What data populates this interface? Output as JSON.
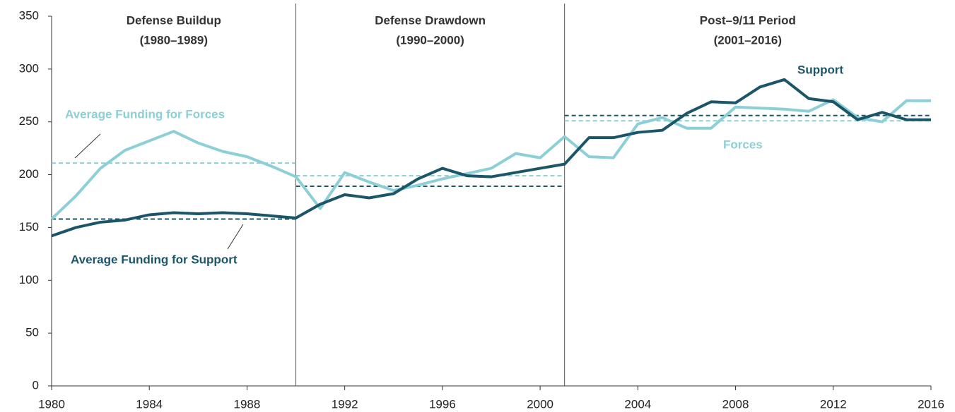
{
  "chart_data": {
    "type": "line",
    "x": [
      1980,
      1981,
      1982,
      1983,
      1984,
      1985,
      1986,
      1987,
      1988,
      1989,
      1990,
      1991,
      1992,
      1993,
      1994,
      1995,
      1996,
      1997,
      1998,
      1999,
      2000,
      2001,
      2002,
      2003,
      2004,
      2005,
      2006,
      2007,
      2008,
      2009,
      2010,
      2011,
      2012,
      2013,
      2014,
      2015,
      2016
    ],
    "series": [
      {
        "name": "Forces",
        "color": "#8ccfd6",
        "values": [
          158,
          180,
          206,
          223,
          232,
          241,
          230,
          222,
          217,
          208,
          198,
          168,
          202,
          193,
          185,
          190,
          196,
          201,
          206,
          220,
          216,
          236,
          217,
          216,
          248,
          254,
          244,
          244,
          264,
          263,
          262,
          260,
          271,
          254,
          250,
          270,
          270
        ]
      },
      {
        "name": "Support",
        "color": "#1b5568",
        "values": [
          142,
          150,
          155,
          157,
          162,
          164,
          163,
          164,
          163,
          161,
          159,
          172,
          181,
          178,
          182,
          196,
          206,
          199,
          198,
          202,
          206,
          210,
          235,
          235,
          240,
          242,
          258,
          269,
          268,
          283,
          290,
          272,
          269,
          252,
          259,
          252,
          252
        ]
      }
    ],
    "averages": [
      {
        "x": [
          1980,
          1990
        ],
        "forces": 211,
        "support": 158
      },
      {
        "x": [
          1990,
          2001
        ],
        "forces": 199,
        "support": 189
      },
      {
        "x": [
          2001,
          2016
        ],
        "forces": 251,
        "support": 256
      }
    ],
    "dividers": [
      1990,
      2001
    ],
    "periods": [
      {
        "name": "Defense Buildup",
        "range": "(1980–1989)"
      },
      {
        "name": "Defense Drawdown",
        "range": "(1990–2000)"
      },
      {
        "name": "Post–9/11 Period",
        "range": "(2001–2016)"
      }
    ],
    "annotations": {
      "forces_average": "Average Funding for Forces",
      "support_average": "Average Funding for Support"
    },
    "xlim": [
      1980,
      2016
    ],
    "ylim": [
      0,
      350
    ],
    "xticks": [
      1980,
      1984,
      1988,
      1992,
      1996,
      2000,
      2004,
      2008,
      2012,
      2016
    ],
    "yticks": [
      0,
      50,
      100,
      150,
      200,
      250,
      300,
      350
    ]
  }
}
